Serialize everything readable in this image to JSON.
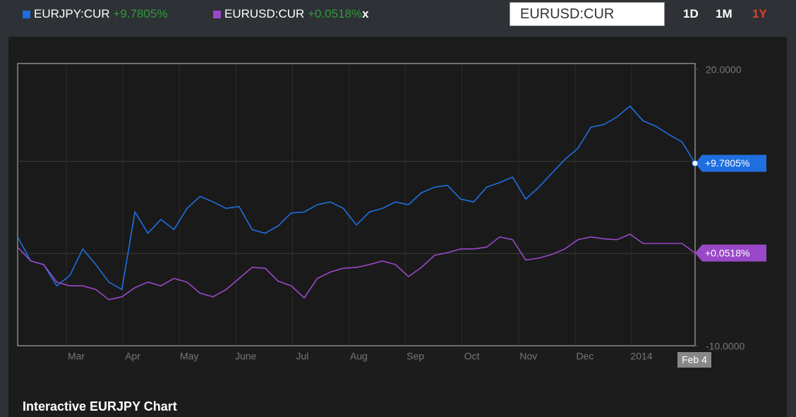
{
  "chart_data": {
    "type": "line",
    "title": "Interactive EURJPY Chart",
    "search_value": "EURUSD:CUR",
    "ranges": [
      "1D",
      "1M",
      "1Y"
    ],
    "active_range": "1Y",
    "remove_label": "x",
    "x_labels": [
      "Mar",
      "Apr",
      "May",
      "June",
      "Jul",
      "Aug",
      "Sep",
      "Oct",
      "Nov",
      "Dec",
      "2014"
    ],
    "end_label": "Feb 4",
    "ylim": [
      -10,
      20
    ],
    "yticks": [
      {
        "value": 20,
        "label": "20.0000"
      },
      {
        "value": 10,
        "label": null
      },
      {
        "value": 0,
        "label": null
      },
      {
        "value": -10,
        "label": "-10.0000"
      }
    ],
    "grid": true,
    "series": [
      {
        "name": "EURJPY:CUR",
        "color": "#1f6fe0",
        "change": 9.7805,
        "change_label": "+9.7805%",
        "values": [
          1.8,
          -0.8,
          -1.2,
          -3.5,
          -2.4,
          0.5,
          -1.2,
          -3.1,
          -3.9,
          4.5,
          2.2,
          3.7,
          2.6,
          4.9,
          6.2,
          5.6,
          4.9,
          5.1,
          2.6,
          2.2,
          3.0,
          4.4,
          4.5,
          5.3,
          5.6,
          4.9,
          3.1,
          4.5,
          4.9,
          5.6,
          5.3,
          6.6,
          7.2,
          7.4,
          5.9,
          5.6,
          7.2,
          7.7,
          8.3,
          5.9,
          7.2,
          8.7,
          10.2,
          11.4,
          13.7,
          14.0,
          14.8,
          16.0,
          14.4,
          13.8,
          12.9,
          12.1,
          9.7805
        ]
      },
      {
        "name": "EURUSD:CUR",
        "color": "#9a48c8",
        "change": 0.0518,
        "change_label": "+0.0518%",
        "values": [
          0.7,
          -0.8,
          -1.2,
          -3.1,
          -3.5,
          -3.5,
          -3.9,
          -5.0,
          -4.7,
          -3.7,
          -3.1,
          -3.5,
          -2.7,
          -3.1,
          -4.3,
          -4.7,
          -3.9,
          -2.7,
          -1.5,
          -1.6,
          -3.0,
          -3.5,
          -4.8,
          -2.7,
          -2.0,
          -1.6,
          -1.5,
          -1.2,
          -0.8,
          -1.2,
          -2.5,
          -1.5,
          -0.2,
          0.1,
          0.5,
          0.5,
          0.7,
          1.8,
          1.5,
          -0.7,
          -0.5,
          -0.1,
          0.5,
          1.5,
          1.8,
          1.6,
          1.5,
          2.1,
          1.1,
          1.1,
          1.1,
          1.1,
          0.0518
        ]
      }
    ]
  }
}
